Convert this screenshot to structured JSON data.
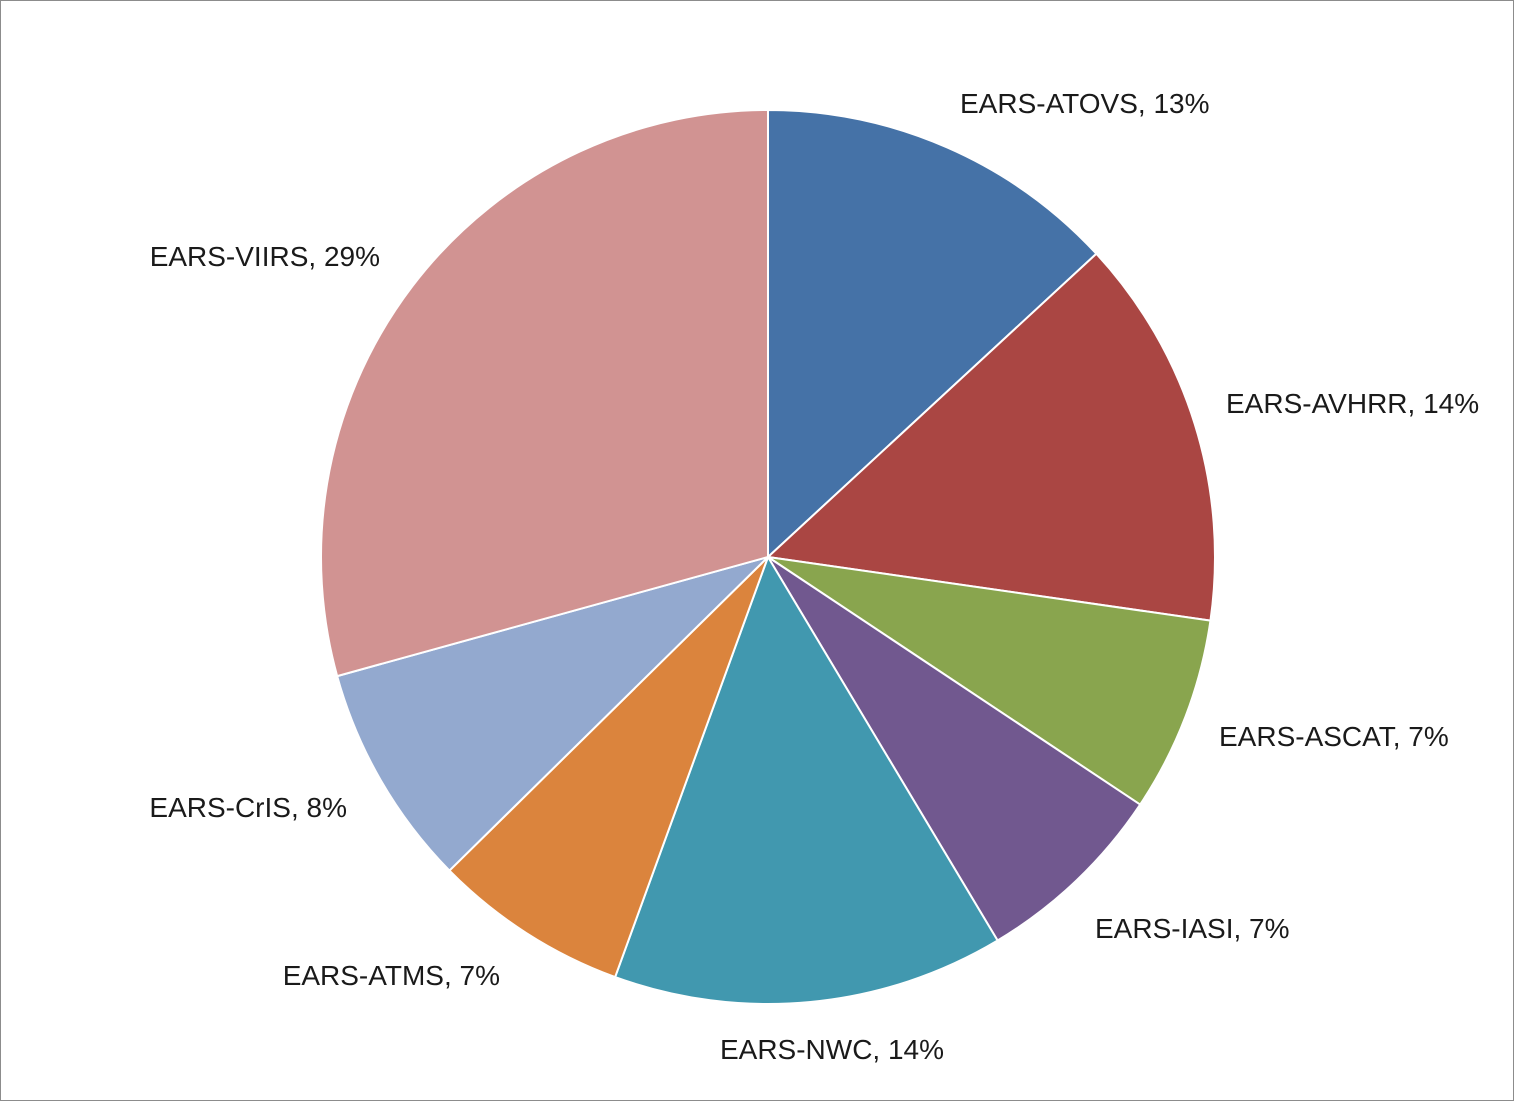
{
  "chart_data": {
    "type": "pie",
    "title": "",
    "start": "12 o'clock",
    "direction": "clockwise",
    "slices": [
      {
        "label": "EARS-ATOVS",
        "value": 13,
        "display": "EARS-ATOVS, 13%",
        "color": "#4572A7"
      },
      {
        "label": "EARS-AVHRR",
        "value": 14,
        "display": "EARS-AVHRR, 14%",
        "color": "#AA4643"
      },
      {
        "label": "EARS-ASCAT",
        "value": 7,
        "display": "EARS-ASCAT, 7%",
        "color": "#89A54E"
      },
      {
        "label": "EARS-IASI",
        "value": 7,
        "display": "EARS-IASI, 7%",
        "color": "#71588F"
      },
      {
        "label": "EARS-NWC",
        "value": 14,
        "display": "EARS-NWC, 14%",
        "color": "#4198AF"
      },
      {
        "label": "EARS-ATMS",
        "value": 7,
        "display": "EARS-ATMS, 7%",
        "color": "#DB843D"
      },
      {
        "label": "EARS-CrIS",
        "value": 8,
        "display": "EARS-CrIS, 8%",
        "color": "#93A9CF"
      },
      {
        "label": "EARS-VIIRS",
        "value": 29,
        "display": "EARS-VIIRS, 29%",
        "color": "#D19392"
      }
    ]
  }
}
